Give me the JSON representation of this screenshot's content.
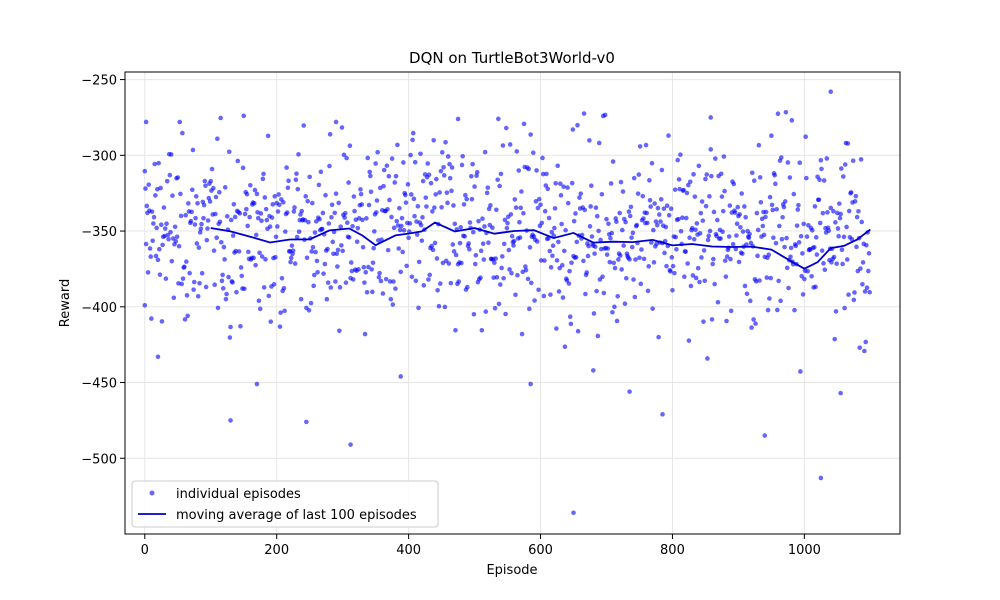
{
  "chart_data": {
    "type": "scatter",
    "title": "DQN on TurtleBot3World-v0",
    "xlabel": "Episode",
    "ylabel": "Reward",
    "xlim": [
      -30,
      1145
    ],
    "ylim": [
      -550,
      -245
    ],
    "xticks": [
      0,
      200,
      400,
      600,
      800,
      1000
    ],
    "yticks": [
      -500,
      -450,
      -400,
      -350,
      -300,
      -250
    ],
    "grid": true,
    "legend_position": "lower-left",
    "colors": {
      "points": "#0000ff",
      "moving_average": "#0000cc"
    },
    "series": [
      {
        "name": "individual episodes",
        "kind": "scatter",
        "n_episodes": 1100,
        "notable_points": [
          {
            "x": 2,
            "y": -278
          },
          {
            "x": 0,
            "y": -399
          },
          {
            "x": 20,
            "y": -433
          },
          {
            "x": 130,
            "y": -475
          },
          {
            "x": 170,
            "y": -451
          },
          {
            "x": 245,
            "y": -476
          },
          {
            "x": 290,
            "y": -278
          },
          {
            "x": 312,
            "y": -491
          },
          {
            "x": 388,
            "y": -446
          },
          {
            "x": 475,
            "y": -276
          },
          {
            "x": 585,
            "y": -451
          },
          {
            "x": 650,
            "y": -536
          },
          {
            "x": 680,
            "y": -442
          },
          {
            "x": 735,
            "y": -456
          },
          {
            "x": 785,
            "y": -471
          },
          {
            "x": 858,
            "y": -275
          },
          {
            "x": 940,
            "y": -485
          },
          {
            "x": 1025,
            "y": -513
          },
          {
            "x": 1040,
            "y": -258
          },
          {
            "x": 1055,
            "y": -457
          }
        ]
      },
      {
        "name": "moving average of last 100 episodes",
        "kind": "line",
        "x": [
          100,
          130,
          160,
          190,
          220,
          250,
          280,
          310,
          330,
          350,
          380,
          400,
          420,
          440,
          470,
          500,
          530,
          560,
          590,
          620,
          650,
          680,
          710,
          740,
          770,
          800,
          830,
          860,
          890,
          920,
          950,
          980,
          1000,
          1020,
          1040,
          1060,
          1080,
          1100
        ],
        "y": [
          -348,
          -350,
          -353,
          -357,
          -355,
          -355,
          -350,
          -348,
          -353,
          -360,
          -353,
          -352,
          -350,
          -345,
          -350,
          -348,
          -352,
          -350,
          -350,
          -355,
          -352,
          -358,
          -357,
          -358,
          -356,
          -360,
          -358,
          -360,
          -360,
          -360,
          -363,
          -370,
          -375,
          -370,
          -362,
          -360,
          -355,
          -349
        ]
      }
    ]
  }
}
